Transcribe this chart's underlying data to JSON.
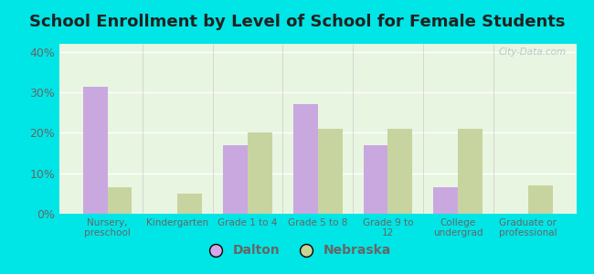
{
  "title": "School Enrollment by Level of School for Female Students",
  "categories": [
    "Nursery,\npreschool",
    "Kindergarten",
    "Grade 1 to 4",
    "Grade 5 to 8",
    "Grade 9 to\n12",
    "College\nundergrad",
    "Graduate or\nprofessional"
  ],
  "dalton": [
    31.5,
    0.0,
    17.0,
    27.0,
    17.0,
    6.5,
    0.0
  ],
  "nebraska": [
    6.5,
    5.0,
    20.0,
    21.0,
    21.0,
    21.0,
    7.0
  ],
  "dalton_color": "#c9a8e0",
  "nebraska_color": "#c8d4a0",
  "background_outer": "#00e5e5",
  "background_inner": "#e8f5e0",
  "ylim": [
    0,
    42
  ],
  "yticks": [
    0,
    10,
    20,
    30,
    40
  ],
  "ytick_labels": [
    "0%",
    "10%",
    "20%",
    "30%",
    "40%"
  ],
  "bar_width": 0.35,
  "legend_labels": [
    "Dalton",
    "Nebraska"
  ],
  "title_fontsize": 13,
  "watermark": "City-Data.com",
  "legend_marker_color_dalton": "#d4a8e8",
  "legend_marker_color_nebraska": "#c8d496",
  "axis_label_color": "#555555",
  "tick_label_color": "#666666"
}
